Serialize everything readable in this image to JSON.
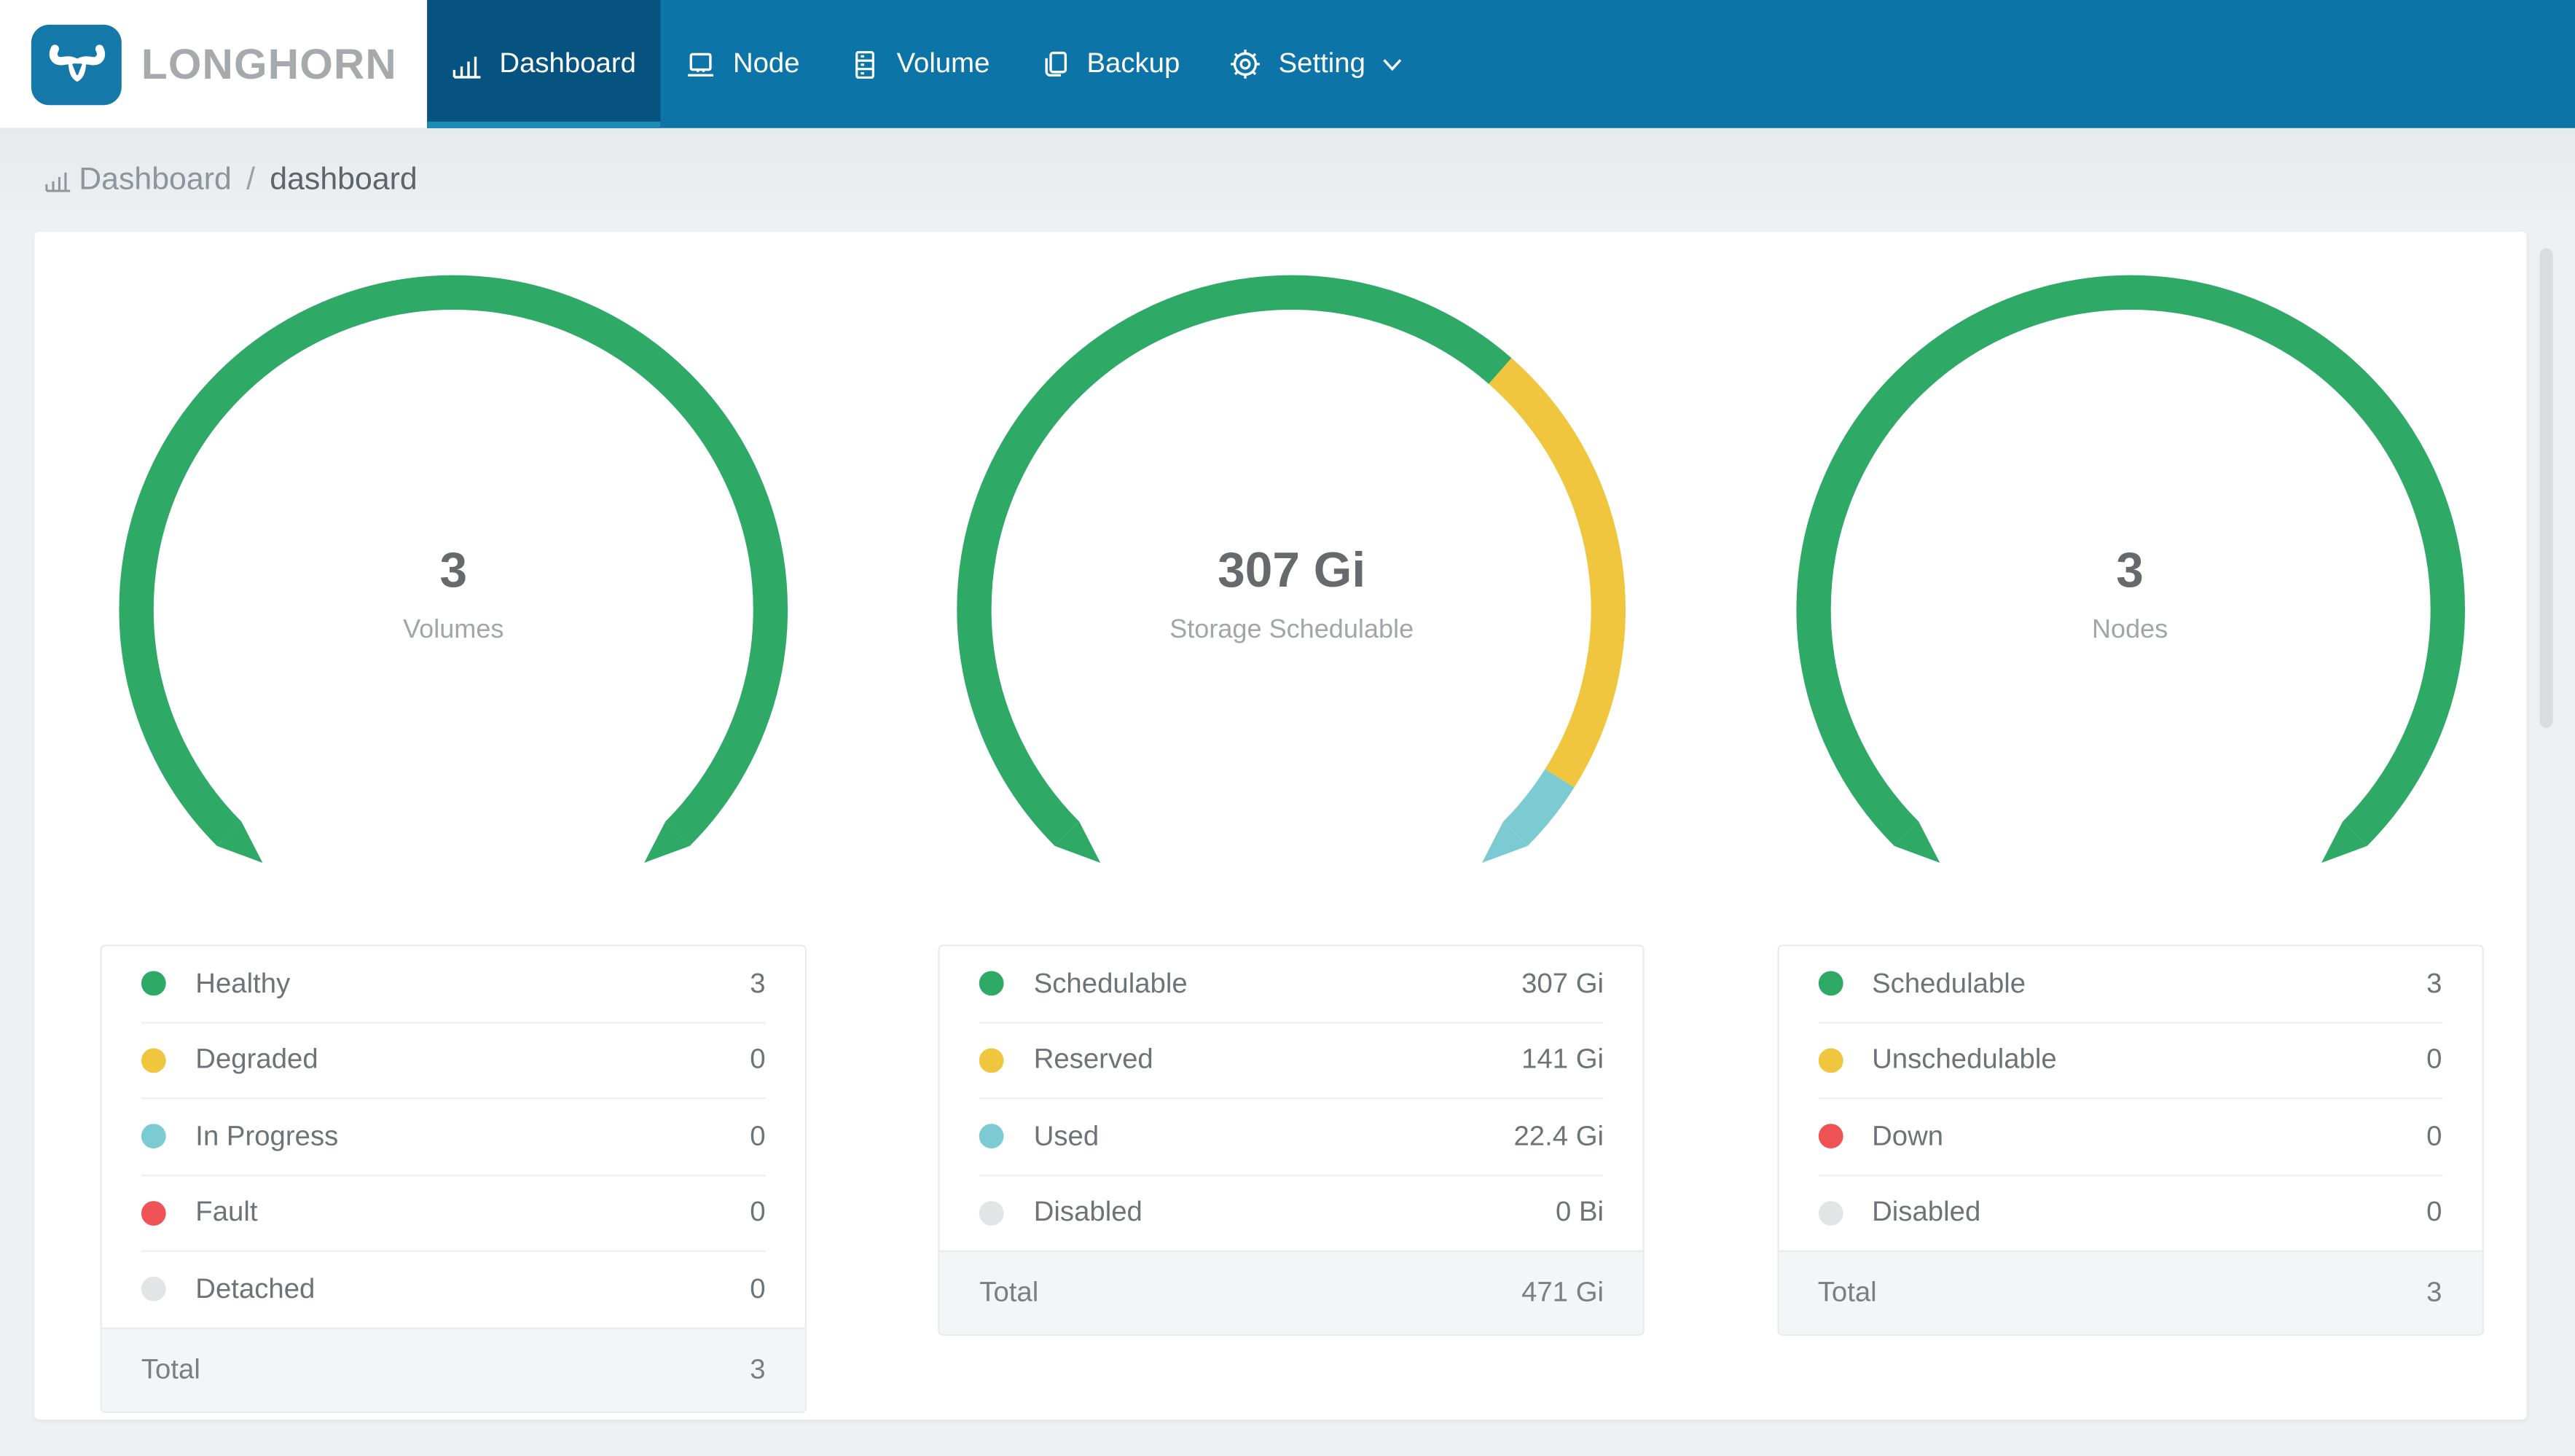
{
  "brand": {
    "name": "LONGHORN",
    "logo_color": "#1478a9"
  },
  "nav": {
    "items": [
      {
        "label": "Dashboard",
        "icon": "bar-chart-icon",
        "active": true
      },
      {
        "label": "Node",
        "icon": "node-icon",
        "active": false
      },
      {
        "label": "Volume",
        "icon": "volume-icon",
        "active": false
      },
      {
        "label": "Backup",
        "icon": "backup-icon",
        "active": false
      },
      {
        "label": "Setting",
        "icon": "gear-icon",
        "active": false,
        "has_dropdown": true
      }
    ]
  },
  "breadcrumb": {
    "section": "Dashboard",
    "separator": "/",
    "page": "dashboard"
  },
  "colors": {
    "navbar": "#0c74a6",
    "navbar_active": "#07537f",
    "active_underline": "#1d8cb4",
    "green": "#2fa966",
    "yellow": "#f0c63e",
    "teal": "#7dcbd2",
    "red": "#ef5355",
    "gray": "#e2e4e6"
  },
  "chart_data": [
    {
      "type": "gauge",
      "title": "Volumes",
      "center_value": "3",
      "center_label": "Volumes",
      "start_angle": -135,
      "sweep_angle": 270,
      "total_label": "Total",
      "total_display": "3",
      "segments": [
        {
          "label": "Healthy",
          "value": 3,
          "display": "3",
          "color": "#2fa966"
        },
        {
          "label": "Degraded",
          "value": 0,
          "display": "0",
          "color": "#f0c63e"
        },
        {
          "label": "In Progress",
          "value": 0,
          "display": "0",
          "color": "#7dcbd2"
        },
        {
          "label": "Fault",
          "value": 0,
          "display": "0",
          "color": "#ef5355"
        },
        {
          "label": "Detached",
          "value": 0,
          "display": "0",
          "color": "#e2e4e6"
        }
      ]
    },
    {
      "type": "gauge",
      "title": "Storage Schedulable",
      "center_value": "307 Gi",
      "center_label": "Storage Schedulable",
      "start_angle": -135,
      "sweep_angle": 270,
      "total_label": "Total",
      "total_display": "471 Gi",
      "segments": [
        {
          "label": "Schedulable",
          "value": 307,
          "display": "307 Gi",
          "color": "#2fa966"
        },
        {
          "label": "Reserved",
          "value": 141,
          "display": "141 Gi",
          "color": "#f0c63e"
        },
        {
          "label": "Used",
          "value": 22.4,
          "display": "22.4 Gi",
          "color": "#7dcbd2"
        },
        {
          "label": "Disabled",
          "value": 0,
          "display": "0 Bi",
          "color": "#e2e4e6"
        }
      ]
    },
    {
      "type": "gauge",
      "title": "Nodes",
      "center_value": "3",
      "center_label": "Nodes",
      "start_angle": -135,
      "sweep_angle": 270,
      "total_label": "Total",
      "total_display": "3",
      "segments": [
        {
          "label": "Schedulable",
          "value": 3,
          "display": "3",
          "color": "#2fa966"
        },
        {
          "label": "Unschedulable",
          "value": 0,
          "display": "0",
          "color": "#f0c63e"
        },
        {
          "label": "Down",
          "value": 0,
          "display": "0",
          "color": "#ef5355"
        },
        {
          "label": "Disabled",
          "value": 0,
          "display": "0",
          "color": "#e2e4e6"
        }
      ]
    }
  ]
}
